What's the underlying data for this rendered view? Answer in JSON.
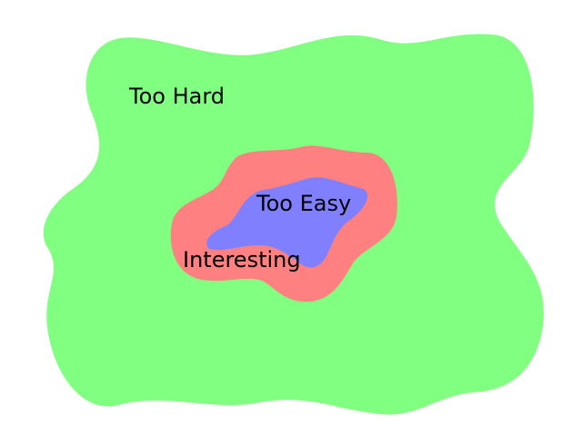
{
  "diagram": {
    "regions": {
      "outer": {
        "label": "Too Hard",
        "color": "#80ff80"
      },
      "middle": {
        "label": "Interesting",
        "color": "#ff8080"
      },
      "inner": {
        "label": "Too Easy",
        "color": "#8080ff"
      }
    }
  }
}
